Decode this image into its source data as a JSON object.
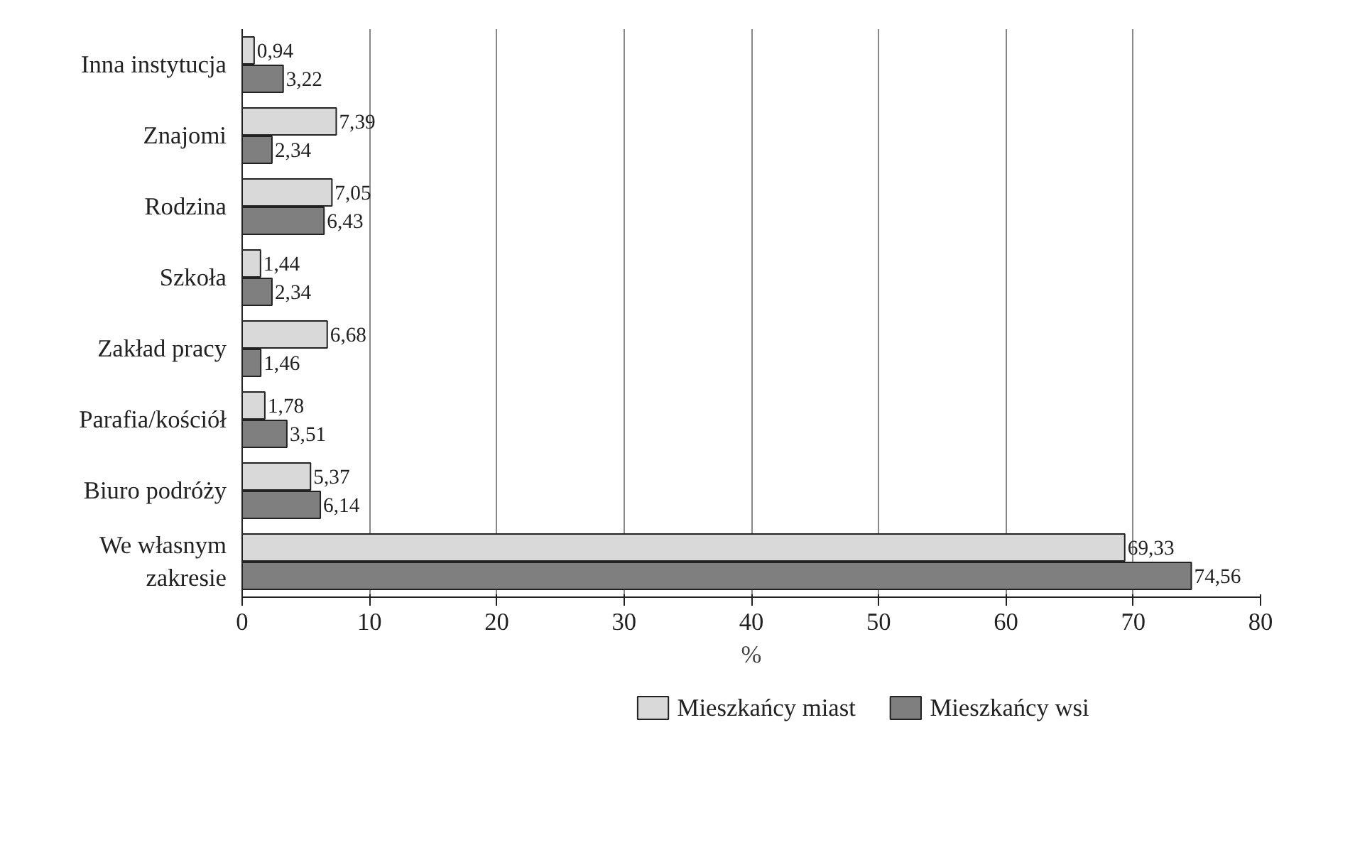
{
  "chart_data": {
    "type": "bar",
    "orientation": "horizontal",
    "xlabel": "%",
    "categories": [
      "Inna instytucja",
      "Znajomi",
      "Rodzina",
      "Szkoła",
      "Zakład pracy",
      "Parafia/kościół",
      "Biuro podróży",
      "We własnym\nzakresie"
    ],
    "series": [
      {
        "name": "Mieszkańcy miast",
        "color": "#d9d9d9",
        "values": [
          0.94,
          7.39,
          7.05,
          1.44,
          6.68,
          1.78,
          5.37,
          69.33
        ],
        "value_labels": [
          "0,94",
          "7,39",
          "7,05",
          "1,44",
          "6,68",
          "1,78",
          "5,37",
          "69,33"
        ]
      },
      {
        "name": "Mieszkańcy wsi",
        "color": "#7f7f7f",
        "values": [
          3.22,
          2.34,
          6.43,
          2.34,
          1.46,
          3.51,
          6.14,
          74.56
        ],
        "value_labels": [
          "3,22",
          "2,34",
          "6,43",
          "2,34",
          "1,46",
          "3,51",
          "6,14",
          "74,56"
        ]
      }
    ],
    "xlim": [
      0,
      80
    ],
    "xticks": [
      0,
      10,
      20,
      30,
      40,
      50,
      60,
      70,
      80
    ],
    "grid": "x",
    "legend": "bottom"
  }
}
